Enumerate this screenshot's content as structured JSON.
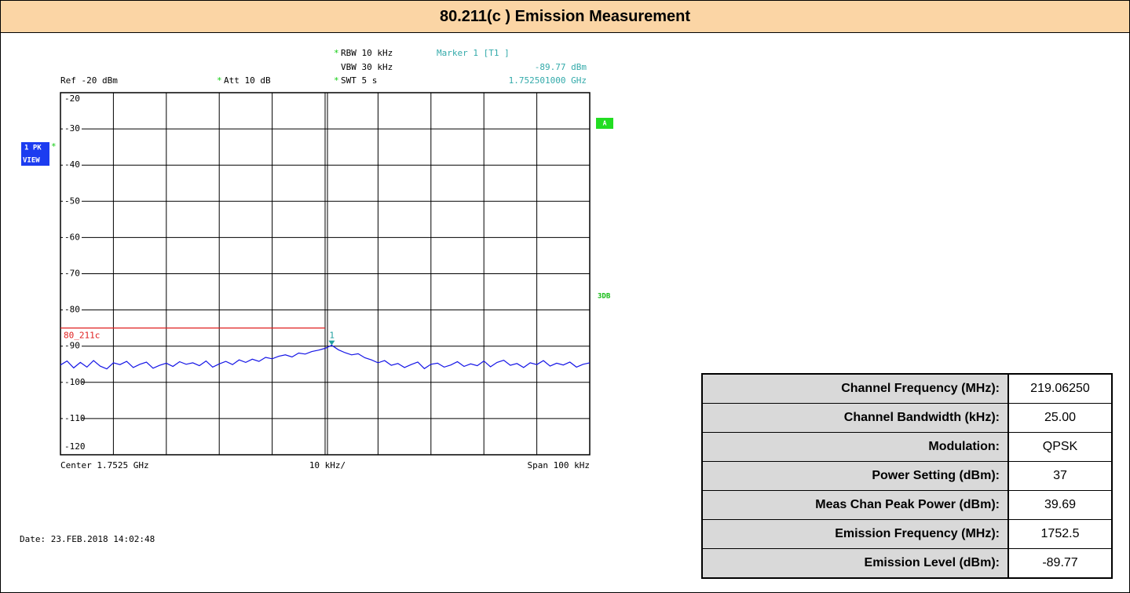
{
  "header": {
    "title": "80.211(c ) Emission Measurement"
  },
  "chart_data": {
    "type": "line",
    "ylim": [
      -120,
      -20
    ],
    "yticks": [
      -20,
      -30,
      -40,
      -50,
      -60,
      -70,
      -80,
      -90,
      -100,
      -110,
      -120
    ],
    "grid": true,
    "series": [
      {
        "color": "#1414e6",
        "values": [
          -95.2,
          -94.1,
          -96.0,
          -94.5,
          -95.8,
          -94.0,
          -95.5,
          -96.3,
          -94.6,
          -95.1,
          -94.2,
          -95.9,
          -95.0,
          -94.4,
          -96.1,
          -95.3,
          -94.7,
          -95.6,
          -94.3,
          -95.0,
          -94.6,
          -95.4,
          -94.1,
          -95.8,
          -94.9,
          -94.2,
          -95.1,
          -93.8,
          -94.5,
          -93.6,
          -94.2,
          -93.1,
          -93.5,
          -92.8,
          -92.4,
          -93.0,
          -91.9,
          -92.2,
          -91.5,
          -91.1,
          -90.6,
          -89.77,
          -91.0,
          -91.8,
          -92.4,
          -92.1,
          -93.2,
          -93.8,
          -94.6,
          -94.0,
          -95.3,
          -94.8,
          -95.9,
          -95.1,
          -94.4,
          -96.2,
          -95.0,
          -94.7,
          -95.8,
          -95.2,
          -94.3,
          -95.6,
          -94.9,
          -95.4,
          -94.1,
          -95.7,
          -94.5,
          -93.9,
          -95.3,
          -94.8,
          -95.9,
          -94.6,
          -95.1,
          -94.0,
          -95.5,
          -94.7,
          -95.2,
          -94.4,
          -95.8,
          -95.0,
          -94.6
        ]
      }
    ],
    "limit_line": {
      "label": "80_211c",
      "value": -85,
      "color": "#e02020"
    },
    "marker": {
      "index": 41,
      "label": "1",
      "color": "#20a0a0"
    },
    "settings": {
      "ref": "Ref -20 dBm",
      "att": {
        "flag": "*",
        "text": "Att  10 dB"
      },
      "rbw": {
        "flag": "*",
        "text": "RBW 10 kHz"
      },
      "vbw": "VBW 30 kHz",
      "swt": {
        "flag": "*",
        "text": "SWT 5 s"
      },
      "marker_title": "Marker 1 [T1 ]",
      "marker_level": "-89.77 dBm",
      "marker_freq": "1.752501000 GHz"
    },
    "x_labels": {
      "center": "Center 1.7525 GHz",
      "div": "10 kHz/",
      "span": "Span 100 kHz"
    },
    "side": {
      "trace": "1 PK",
      "trace_flag": "*",
      "view": "VIEW",
      "a": "A",
      "db": "3DB"
    },
    "date": "Date: 23.FEB.2018  14:02:48"
  },
  "table": {
    "rows": [
      [
        "Channel Frequency (MHz):",
        "219.06250"
      ],
      [
        "Channel Bandwidth (kHz):",
        "25.00"
      ],
      [
        "Modulation:",
        "QPSK"
      ],
      [
        "Power Setting (dBm):",
        "37"
      ],
      [
        "Meas Chan Peak Power (dBm):",
        "39.69"
      ],
      [
        "Emission Frequency (MHz):",
        "1752.5"
      ],
      [
        "Emission Level (dBm):",
        "-89.77"
      ]
    ]
  }
}
